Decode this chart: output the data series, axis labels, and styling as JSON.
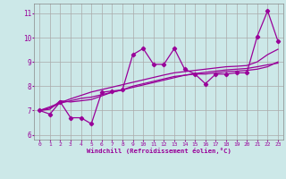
{
  "xlabel": "Windchill (Refroidissement éolien,°C)",
  "bg_color": "#cce8e8",
  "grid_color": "#aaaaaa",
  "line_color": "#990099",
  "marker": "D",
  "markersize": 2.2,
  "linewidth": 0.9,
  "xlim": [
    -0.5,
    23.5
  ],
  "ylim": [
    5.8,
    11.4
  ],
  "yticks": [
    6,
    7,
    8,
    9,
    10,
    11
  ],
  "xticks": [
    0,
    1,
    2,
    3,
    4,
    5,
    6,
    7,
    8,
    9,
    10,
    11,
    12,
    13,
    14,
    15,
    16,
    17,
    18,
    19,
    20,
    21,
    22,
    23
  ],
  "series_main": [
    7.0,
    6.85,
    7.35,
    6.7,
    6.7,
    6.45,
    7.75,
    7.8,
    7.85,
    9.3,
    9.55,
    8.9,
    8.9,
    9.55,
    8.7,
    8.5,
    8.1,
    8.5,
    8.5,
    8.55,
    8.55,
    10.05,
    11.1,
    9.85
  ],
  "series_lines": [
    [
      7.0,
      7.05,
      7.4,
      7.35,
      7.4,
      7.45,
      7.6,
      7.75,
      7.85,
      8.0,
      8.1,
      8.2,
      8.3,
      8.4,
      8.45,
      8.5,
      8.5,
      8.55,
      8.6,
      8.62,
      8.65,
      8.7,
      8.8,
      9.0
    ],
    [
      7.0,
      7.1,
      7.3,
      7.4,
      7.5,
      7.55,
      7.65,
      7.75,
      7.85,
      7.95,
      8.05,
      8.15,
      8.25,
      8.35,
      8.45,
      8.52,
      8.57,
      8.62,
      8.67,
      8.7,
      8.73,
      8.8,
      8.88,
      8.95
    ],
    [
      7.0,
      7.15,
      7.32,
      7.48,
      7.62,
      7.76,
      7.86,
      7.96,
      8.06,
      8.16,
      8.26,
      8.36,
      8.46,
      8.55,
      8.6,
      8.65,
      8.7,
      8.75,
      8.8,
      8.82,
      8.85,
      9.0,
      9.3,
      9.52
    ]
  ]
}
